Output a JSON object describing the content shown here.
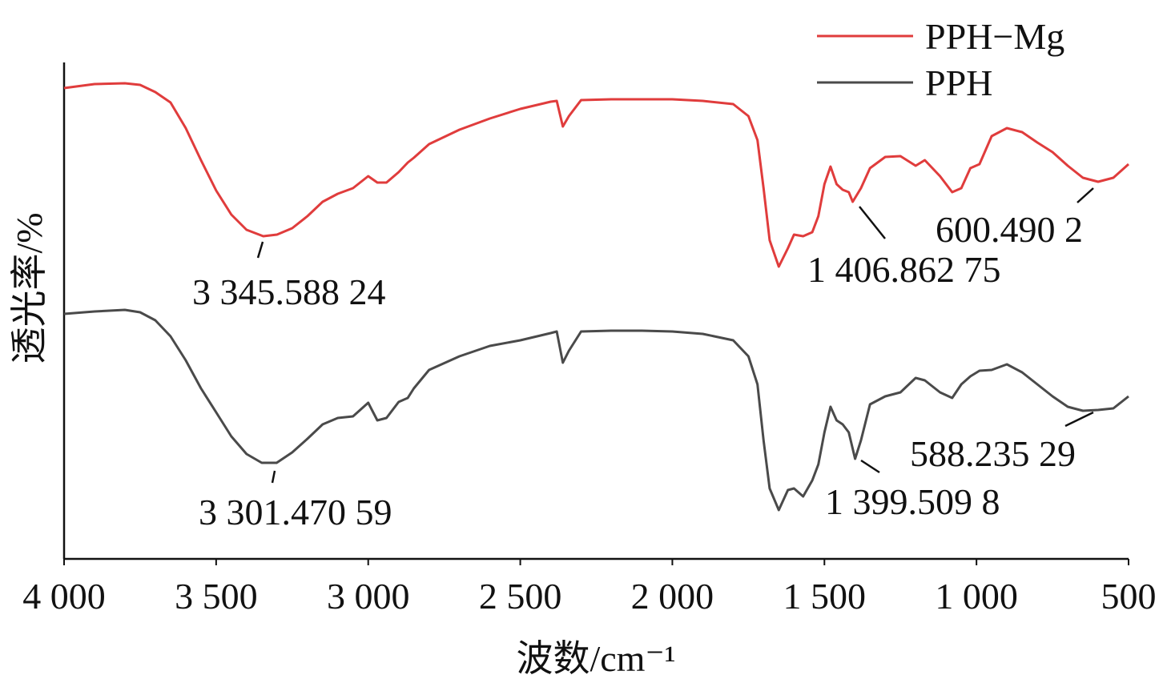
{
  "chart_data": {
    "type": "line",
    "x_label": "波数/cm⁻¹",
    "y_label": "透光率/%",
    "xlim": [
      4000,
      500
    ],
    "ylim": [
      0,
      620
    ],
    "xticks": [
      {
        "value": 4000,
        "label": "4 000"
      },
      {
        "value": 3500,
        "label": "3 500"
      },
      {
        "value": 3000,
        "label": "3 000"
      },
      {
        "value": 2500,
        "label": "2 500"
      },
      {
        "value": 2000,
        "label": "2 000"
      },
      {
        "value": 1500,
        "label": "1 500"
      },
      {
        "value": 1000,
        "label": "1 000"
      },
      500
    ],
    "legend_position": "upper right",
    "series": [
      {
        "name": "PPH−Mg",
        "color": "#e03c3c",
        "x": [
          4000,
          3900,
          3800,
          3750,
          3700,
          3650,
          3600,
          3550,
          3500,
          3450,
          3400,
          3345,
          3300,
          3250,
          3200,
          3150,
          3100,
          3050,
          3000,
          2970,
          2940,
          2900,
          2870,
          2850,
          2800,
          2700,
          2600,
          2500,
          2400,
          2380,
          2360,
          2340,
          2300,
          2200,
          2100,
          2000,
          1900,
          1800,
          1750,
          1720,
          1700,
          1680,
          1650,
          1620,
          1600,
          1570,
          1540,
          1520,
          1500,
          1480,
          1460,
          1440,
          1420,
          1407,
          1380,
          1350,
          1300,
          1250,
          1200,
          1170,
          1120,
          1080,
          1050,
          1020,
          990,
          950,
          900,
          850,
          800,
          750,
          700,
          650,
          600,
          550,
          500
        ],
        "values": [
          588,
          593,
          594,
          592,
          583,
          570,
          538,
          498,
          460,
          430,
          411,
          403,
          405,
          413,
          428,
          446,
          456,
          463,
          478,
          470,
          470,
          483,
          495,
          501,
          518,
          536,
          550,
          562,
          571,
          572,
          540,
          553,
          573,
          574,
          574,
          574,
          572,
          568,
          553,
          523,
          463,
          398,
          365,
          388,
          405,
          403,
          408,
          428,
          468,
          490,
          468,
          461,
          458,
          446,
          463,
          488,
          502,
          503,
          491,
          498,
          478,
          458,
          463,
          488,
          493,
          528,
          538,
          533,
          520,
          508,
          491,
          476,
          471,
          476,
          493
        ]
      },
      {
        "name": "PPH",
        "color": "#4a4a4a",
        "x": [
          4000,
          3900,
          3800,
          3750,
          3700,
          3650,
          3600,
          3550,
          3500,
          3450,
          3400,
          3350,
          3301,
          3250,
          3200,
          3150,
          3100,
          3050,
          3000,
          2970,
          2940,
          2900,
          2870,
          2850,
          2800,
          2700,
          2600,
          2500,
          2400,
          2380,
          2360,
          2340,
          2300,
          2200,
          2100,
          2000,
          1900,
          1800,
          1750,
          1720,
          1700,
          1680,
          1650,
          1620,
          1600,
          1570,
          1540,
          1520,
          1500,
          1480,
          1460,
          1440,
          1420,
          1399,
          1380,
          1350,
          1300,
          1250,
          1200,
          1170,
          1120,
          1080,
          1050,
          1020,
          990,
          950,
          900,
          850,
          800,
          750,
          700,
          650,
          600,
          550,
          500
        ],
        "values": [
          306,
          309,
          311,
          308,
          298,
          278,
          248,
          213,
          183,
          153,
          131,
          120,
          120,
          133,
          150,
          168,
          176,
          178,
          195,
          173,
          176,
          196,
          201,
          213,
          236,
          253,
          266,
          273,
          282,
          284,
          245,
          260,
          284,
          285,
          285,
          284,
          281,
          273,
          253,
          218,
          148,
          88,
          61,
          86,
          88,
          78,
          98,
          118,
          158,
          190,
          173,
          168,
          158,
          125,
          148,
          193,
          203,
          208,
          226,
          223,
          208,
          201,
          218,
          228,
          235,
          236,
          243,
          233,
          218,
          203,
          190,
          185,
          186,
          188,
          203
        ]
      }
    ],
    "annotations": [
      "3 345.588 24",
      "1 406.862 75",
      "600.490 2",
      "3 301.470 59",
      "1 399.509 8",
      "588.235 29"
    ]
  }
}
